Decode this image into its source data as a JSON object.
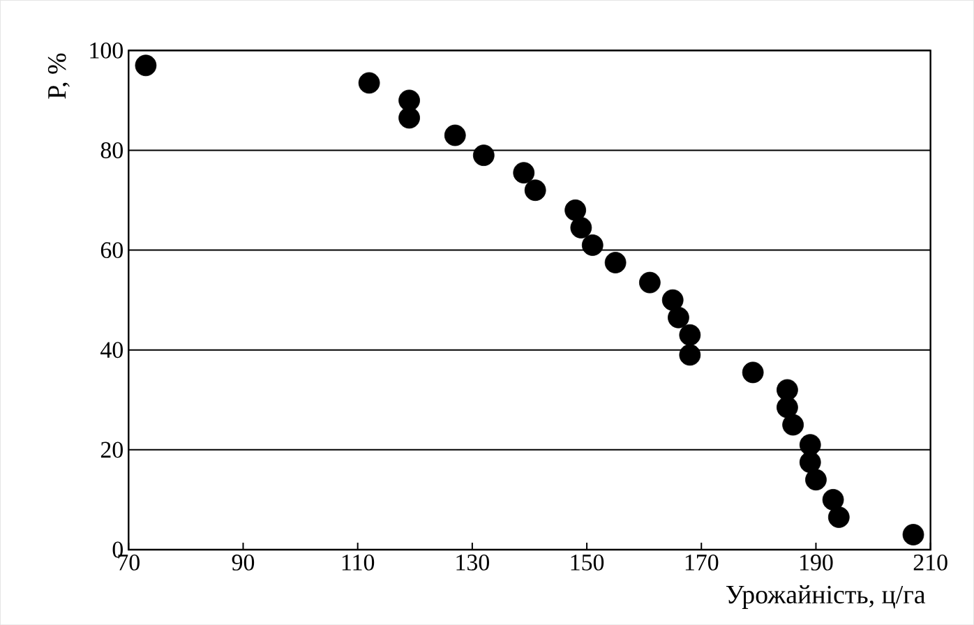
{
  "chart_data": {
    "type": "scatter",
    "xlabel": "Урожайність, ц/га",
    "ylabel": "P, %",
    "x": [
      73,
      112,
      119,
      119,
      127,
      132,
      139,
      141,
      148,
      149,
      151,
      155,
      161,
      165,
      166,
      168,
      168,
      179,
      185,
      185,
      186,
      189,
      189,
      190,
      193,
      194,
      207
    ],
    "values": [
      97,
      93.5,
      90,
      86.5,
      83,
      79,
      75.5,
      72,
      68,
      64.5,
      61,
      57.5,
      53.5,
      50,
      46.5,
      43,
      39,
      35.5,
      32,
      28.5,
      25,
      21,
      17.5,
      14,
      10,
      6.5,
      3
    ],
    "color": "#000000",
    "marker": "circle",
    "xlim": [
      70,
      210
    ],
    "ylim": [
      0,
      100
    ],
    "xticks": [
      70,
      90,
      110,
      130,
      150,
      170,
      190,
      210
    ],
    "yticks": [
      0,
      20,
      40,
      60,
      80,
      100
    ],
    "grid": "y"
  }
}
